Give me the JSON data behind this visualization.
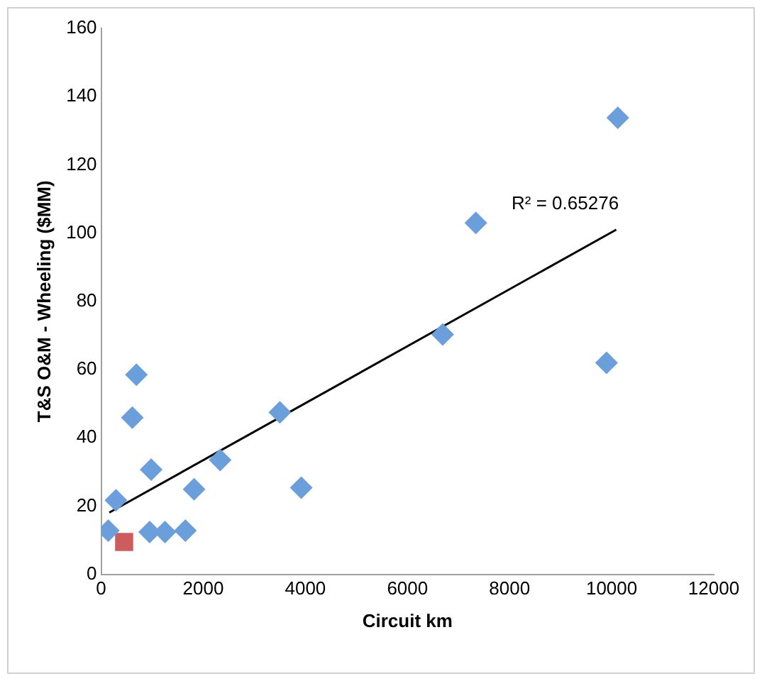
{
  "chart_data": {
    "type": "scatter",
    "xlabel": "Circuit km",
    "ylabel": "T&S O&M - Wheeling ($MM)",
    "xlim": [
      0,
      12000
    ],
    "xticks": [
      0,
      2000,
      4000,
      6000,
      8000,
      10000,
      12000
    ],
    "ylim": [
      0,
      160
    ],
    "yticks": [
      0,
      20,
      40,
      60,
      80,
      100,
      120,
      140,
      160
    ],
    "grid": false,
    "legend": false,
    "marker": "diamond",
    "series": [
      {
        "color": "#6a9fdb",
        "x": [
          140,
          290,
          690,
          610,
          980,
          950,
          1250,
          1650,
          1820,
          2330,
          3500,
          3920,
          6690,
          7340,
          10120,
          9900
        ],
        "values": [
          12.8,
          21.7,
          58.5,
          45.9,
          30.7,
          12.4,
          12.4,
          12.8,
          24.9,
          33.5,
          47.5,
          25.4,
          70.3,
          103,
          133.8,
          62
        ]
      },
      {
        "color": "#cd5c5c",
        "marker": "square",
        "x": [
          450
        ],
        "values": [
          9.5
        ]
      },
      {
        "type": "line",
        "color": "#000000",
        "marker": "none",
        "x": [
          160,
          10090
        ],
        "values": [
          18.1,
          101
        ]
      }
    ],
    "annotations": [
      "R² = 0.65276"
    ]
  }
}
